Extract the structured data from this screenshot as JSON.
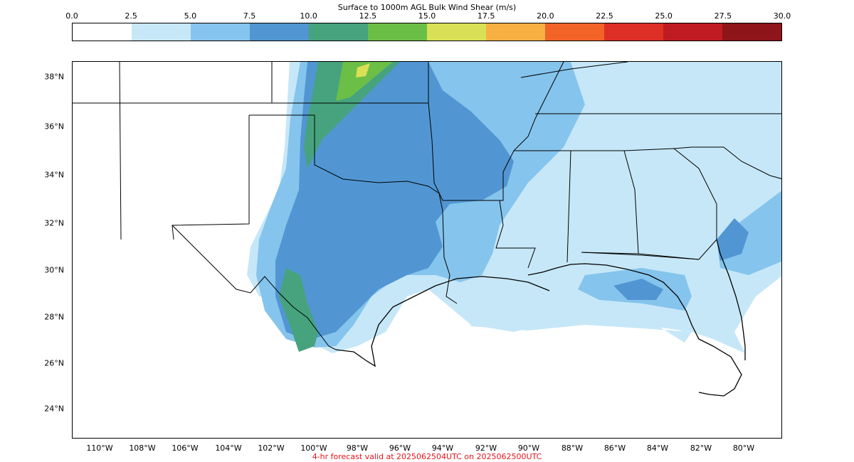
{
  "colorbar": {
    "title": "Surface to 1000m AGL Bulk Wind Shear (m/s)",
    "ticks": [
      "0.0",
      "2.5",
      "5.0",
      "7.5",
      "10.0",
      "12.5",
      "15.0",
      "17.5",
      "20.0",
      "22.5",
      "25.0",
      "27.5",
      "30.0"
    ],
    "colors": [
      "#ffffff",
      "#c6e7f8",
      "#85c4ec",
      "#5196d2",
      "#46a37e",
      "#6bbf47",
      "#dae056",
      "#f8b043",
      "#f26328",
      "#de2f26",
      "#c01b22",
      "#8e1519"
    ]
  },
  "map": {
    "lat_labels": [
      "38°N",
      "36°N",
      "34°N",
      "32°N",
      "30°N",
      "28°N",
      "26°N",
      "24°N"
    ],
    "lon_labels": [
      "110°W",
      "108°W",
      "106°W",
      "104°W",
      "102°W",
      "100°W",
      "98°W",
      "96°W",
      "94°W",
      "92°W",
      "90°W",
      "88°W",
      "86°W",
      "84°W",
      "82°W",
      "80°W"
    ]
  },
  "footer": "4-hr forecast valid at 2025062504UTC on 2025062500UTC"
}
